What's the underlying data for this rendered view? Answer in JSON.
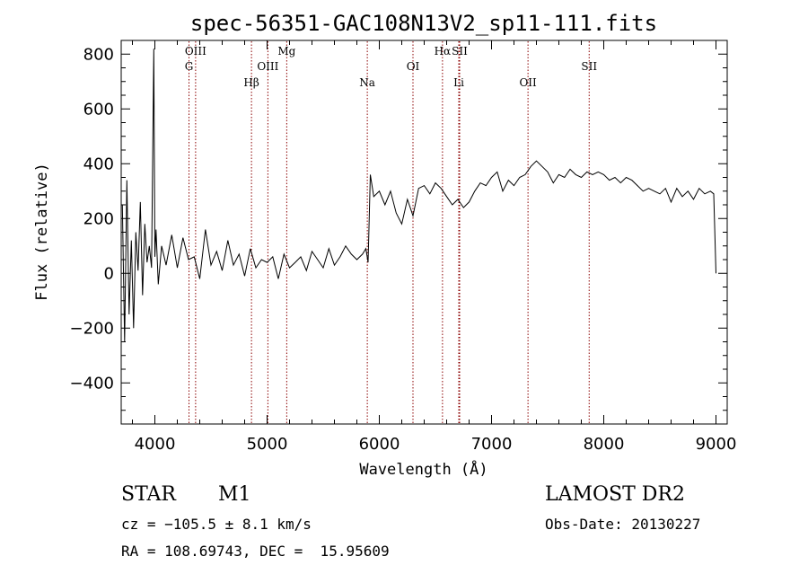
{
  "chart_data": {
    "type": "line",
    "title": "spec-56351-GAC108N13V2_sp11-111.fits",
    "xlabel": "Wavelength (Å)",
    "ylabel": "Flux (relative)",
    "xlim": [
      3700,
      9100
    ],
    "ylim": [
      -550,
      850
    ],
    "xticks": [
      4000,
      5000,
      6000,
      7000,
      8000,
      9000
    ],
    "yticks": [
      -400,
      -200,
      0,
      200,
      400,
      600,
      800
    ],
    "line_color": "#000000",
    "marker_color": "#8b0000",
    "lines": [
      {
        "label": "OIII",
        "x": 4363,
        "row": 1
      },
      {
        "label": "G",
        "x": 4304,
        "row": 2
      },
      {
        "label": "Hβ",
        "x": 4861,
        "row": 3
      },
      {
        "label": "OIII",
        "x": 5007,
        "row": 2
      },
      {
        "label": "Mg",
        "x": 5175,
        "row": 1
      },
      {
        "label": "Na",
        "x": 5893,
        "row": 3
      },
      {
        "label": "OI",
        "x": 6300,
        "row": 2
      },
      {
        "label": "Hα",
        "x": 6563,
        "row": 1
      },
      {
        "label": "SII",
        "x": 6716,
        "row": 1
      },
      {
        "label": "Li",
        "x": 6708,
        "row": 3
      },
      {
        "label": "OII",
        "x": 7325,
        "row": 3
      },
      {
        "label": "SII",
        "x": 7870,
        "row": 2
      }
    ],
    "series": [
      {
        "x": [
          3710,
          3730,
          3750,
          3770,
          3790,
          3810,
          3830,
          3850,
          3870,
          3890,
          3910,
          3930,
          3950,
          3970,
          3990,
          4000,
          4010,
          4030,
          4060,
          4100,
          4150,
          4200,
          4250,
          4300,
          4350,
          4400,
          4450,
          4500,
          4550,
          4600,
          4650,
          4700,
          4750,
          4800,
          4850,
          4900,
          4950,
          5000,
          5050,
          5100,
          5150,
          5200,
          5250,
          5300,
          5350,
          5400,
          5450,
          5500,
          5550,
          5600,
          5650,
          5700,
          5750,
          5800,
          5850,
          5880,
          5900,
          5920,
          5950,
          6000,
          6050,
          6100,
          6150,
          6200,
          6250,
          6300,
          6350,
          6400,
          6450,
          6500,
          6550,
          6600,
          6650,
          6700,
          6750,
          6800,
          6850,
          6900,
          6950,
          7000,
          7050,
          7100,
          7150,
          7200,
          7250,
          7300,
          7350,
          7400,
          7450,
          7500,
          7550,
          7600,
          7650,
          7700,
          7750,
          7800,
          7850,
          7900,
          7950,
          8000,
          8050,
          8100,
          8150,
          8200,
          8250,
          8300,
          8350,
          8400,
          8450,
          8500,
          8550,
          8600,
          8650,
          8700,
          8750,
          8800,
          8850,
          8900,
          8950,
          8980,
          9000
        ],
        "y": [
          250,
          -250,
          340,
          -150,
          120,
          -200,
          150,
          10,
          260,
          -80,
          180,
          40,
          100,
          20,
          820,
          60,
          160,
          -40,
          100,
          30,
          140,
          20,
          130,
          50,
          60,
          -20,
          160,
          30,
          80,
          10,
          120,
          30,
          70,
          -10,
          90,
          20,
          50,
          40,
          60,
          -20,
          70,
          20,
          40,
          60,
          10,
          80,
          50,
          20,
          90,
          30,
          60,
          100,
          70,
          50,
          70,
          90,
          40,
          360,
          280,
          300,
          250,
          300,
          220,
          180,
          270,
          210,
          310,
          320,
          290,
          330,
          310,
          280,
          250,
          270,
          240,
          260,
          300,
          330,
          320,
          350,
          370,
          300,
          340,
          320,
          350,
          360,
          390,
          410,
          390,
          370,
          330,
          360,
          350,
          380,
          360,
          350,
          370,
          360,
          370,
          360,
          340,
          350,
          330,
          350,
          340,
          320,
          300,
          310,
          300,
          290,
          310,
          260,
          310,
          280,
          300,
          270,
          310,
          290,
          300,
          290,
          0
        ]
      }
    ]
  },
  "info": {
    "class_label": "STAR",
    "subclass_label": "M1",
    "cz_text": "cz = −105.5 ± 8.1 km/s",
    "coord_text": "RA = 108.69743, DEC =  15.95609",
    "survey_label": "LAMOST DR2",
    "obs_date_text": "Obs-Date: 20130227"
  }
}
